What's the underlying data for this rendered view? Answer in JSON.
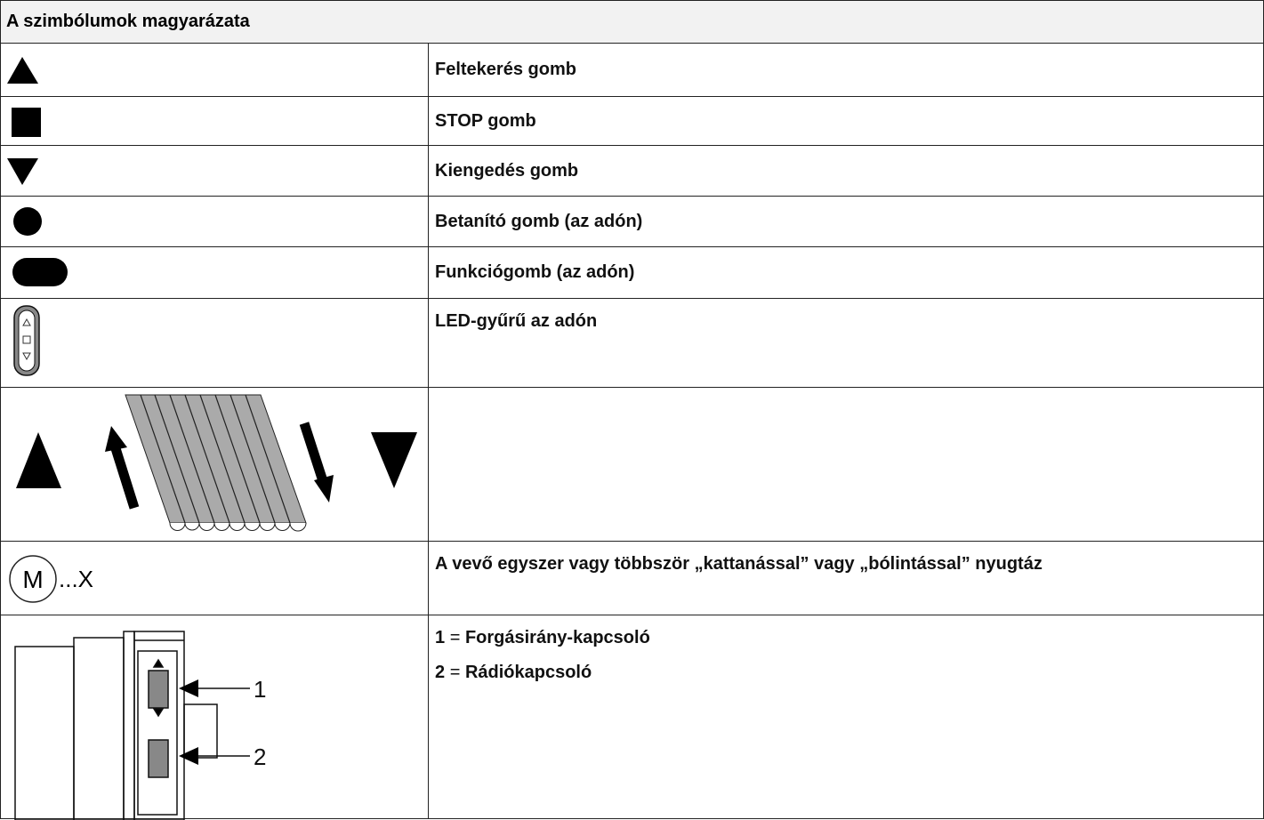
{
  "header": {
    "title": "A szimbólumok magyarázata"
  },
  "rows": [
    {
      "text": "Feltekerés gomb"
    },
    {
      "text": "STOP gomb"
    },
    {
      "text": "Kiengedés gomb"
    },
    {
      "text": "Betanító gomb (az adón)"
    },
    {
      "text": "Funkciógomb (az adón)"
    },
    {
      "text": "LED-gyűrű az adón"
    },
    {},
    {
      "icon_text": "M",
      "icon_suffix": "...X",
      "text": "A vevő egyszer vagy többször „kattanással” vagy „bólintással” nyugtáz"
    },
    {
      "icon_labels": [
        "1",
        "2"
      ],
      "lines": [
        {
          "key": "1",
          "sep": "=",
          "text": "Forgásirány-kapcsoló"
        },
        {
          "key": "2",
          "sep": "=",
          "text": "Rádiókapcsoló"
        }
      ]
    }
  ]
}
